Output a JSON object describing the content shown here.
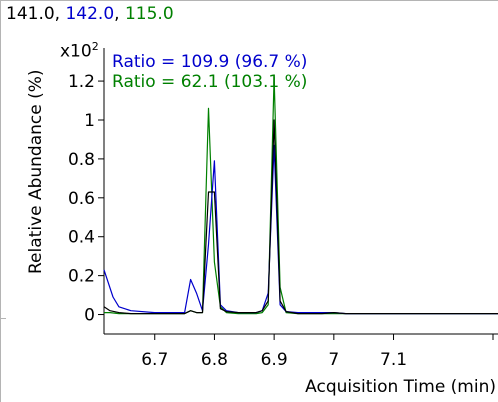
{
  "header": {
    "parts": [
      {
        "text": "141.0",
        "color": "#000000"
      },
      {
        "text": ", ",
        "color": "#000000"
      },
      {
        "text": "142.0",
        "color": "#0000cc"
      },
      {
        "text": ", ",
        "color": "#000000"
      },
      {
        "text": "115.0",
        "color": "#008000"
      }
    ]
  },
  "chart_data": {
    "type": "line",
    "ylabel": "Relative Abundance (%)",
    "xlabel": "Acquisition Time (min)",
    "y_multiplier": "x10",
    "y_multiplier_exp": "2",
    "xlim": [
      6.615,
      7.275
    ],
    "ylim": [
      -0.1,
      1.37
    ],
    "x_ticks": [
      6.7,
      6.8,
      6.9,
      7.0,
      7.1
    ],
    "x_tick_labels": [
      "6.7",
      "6.8",
      "6.9",
      "7",
      "7.1"
    ],
    "y_ticks": [
      0,
      0.2,
      0.4,
      0.6,
      0.8,
      1.0,
      1.2
    ],
    "y_tick_labels": [
      "0",
      "0.2",
      "0.4",
      "0.6",
      "0.8",
      "1",
      "1.2"
    ],
    "annotations": [
      {
        "text": "Ratio = 109.9 (96.7 %)",
        "color": "#0000cc"
      },
      {
        "text": "Ratio = 62.1 (103.1 %)",
        "color": "#008000"
      }
    ],
    "series": [
      {
        "color": "#000000",
        "x": [
          6.615,
          6.625,
          6.64,
          6.66,
          6.7,
          6.73,
          6.75,
          6.76,
          6.77,
          6.78,
          6.79,
          6.8,
          6.81,
          6.82,
          6.84,
          6.87,
          6.88,
          6.89,
          6.9,
          6.91,
          6.92,
          6.94,
          6.98,
          7.0,
          7.02,
          7.1,
          7.2,
          7.275
        ],
        "y": [
          0.04,
          0.02,
          0.01,
          0.005,
          0.005,
          0.005,
          0.005,
          0.02,
          0.01,
          0.01,
          0.63,
          0.63,
          0.03,
          0.015,
          0.01,
          0.01,
          0.02,
          0.07,
          1.0,
          0.07,
          0.015,
          0.005,
          0.005,
          0.01,
          0.005,
          0.005,
          0.005,
          0.005
        ]
      },
      {
        "color": "#0000cc",
        "x": [
          6.615,
          6.63,
          6.64,
          6.66,
          6.7,
          6.73,
          6.75,
          6.76,
          6.77,
          6.78,
          6.79,
          6.8,
          6.81,
          6.82,
          6.84,
          6.87,
          6.88,
          6.89,
          6.9,
          6.91,
          6.92,
          6.94,
          6.98,
          7.0,
          7.02,
          7.1,
          7.2,
          7.275
        ],
        "y": [
          0.23,
          0.09,
          0.04,
          0.02,
          0.01,
          0.01,
          0.01,
          0.18,
          0.11,
          0.02,
          0.36,
          0.79,
          0.05,
          0.02,
          0.01,
          0.01,
          0.02,
          0.11,
          0.87,
          0.05,
          0.015,
          0.01,
          0.01,
          0.01,
          0.005,
          0.005,
          0.005,
          0.005
        ]
      },
      {
        "color": "#008000",
        "x": [
          6.615,
          6.625,
          6.64,
          6.66,
          6.7,
          6.73,
          6.75,
          6.76,
          6.77,
          6.78,
          6.79,
          6.8,
          6.81,
          6.82,
          6.84,
          6.87,
          6.88,
          6.89,
          6.9,
          6.91,
          6.92,
          6.94,
          6.98,
          7.0,
          7.02,
          7.1,
          7.2,
          7.275
        ],
        "y": [
          0.01,
          0.01,
          0.005,
          0.005,
          0.005,
          0.005,
          0.005,
          0.02,
          0.01,
          0.01,
          1.06,
          0.27,
          0.04,
          0.01,
          0.005,
          0.005,
          0.01,
          0.05,
          1.22,
          0.14,
          0.01,
          0.005,
          0.005,
          0.005,
          0.005,
          0.005,
          0.005,
          0.005
        ]
      }
    ]
  }
}
